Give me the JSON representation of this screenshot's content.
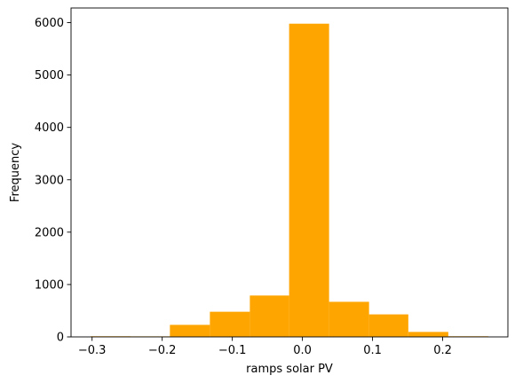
{
  "chart_data": {
    "type": "bar",
    "title": "",
    "xlabel": "ramps solar PV",
    "ylabel": "Frequency",
    "bins": [
      {
        "x0": -0.302,
        "x1": -0.245,
        "count": 12
      },
      {
        "x0": -0.245,
        "x1": -0.189,
        "count": 10
      },
      {
        "x0": -0.189,
        "x1": -0.132,
        "count": 230
      },
      {
        "x0": -0.132,
        "x1": -0.075,
        "count": 480
      },
      {
        "x0": -0.075,
        "x1": -0.019,
        "count": 790
      },
      {
        "x0": -0.019,
        "x1": 0.038,
        "count": 5980
      },
      {
        "x0": 0.038,
        "x1": 0.095,
        "count": 670
      },
      {
        "x0": 0.095,
        "x1": 0.151,
        "count": 430
      },
      {
        "x0": 0.151,
        "x1": 0.208,
        "count": 95
      },
      {
        "x0": 0.208,
        "x1": 0.265,
        "count": 12
      }
    ],
    "xlim": [
      -0.33,
      0.293
    ],
    "ylim": [
      0,
      6280
    ],
    "xticks": [
      -0.3,
      -0.2,
      -0.1,
      0.0,
      0.1,
      0.2
    ],
    "xtick_labels": [
      "−0.3",
      "−0.2",
      "−0.1",
      "0.0",
      "0.1",
      "0.2"
    ],
    "yticks": [
      0,
      1000,
      2000,
      3000,
      4000,
      5000,
      6000
    ],
    "ytick_labels": [
      "0",
      "1000",
      "2000",
      "3000",
      "4000",
      "5000",
      "6000"
    ],
    "bar_color": "#ffa500",
    "grid": false,
    "legend": "none"
  }
}
